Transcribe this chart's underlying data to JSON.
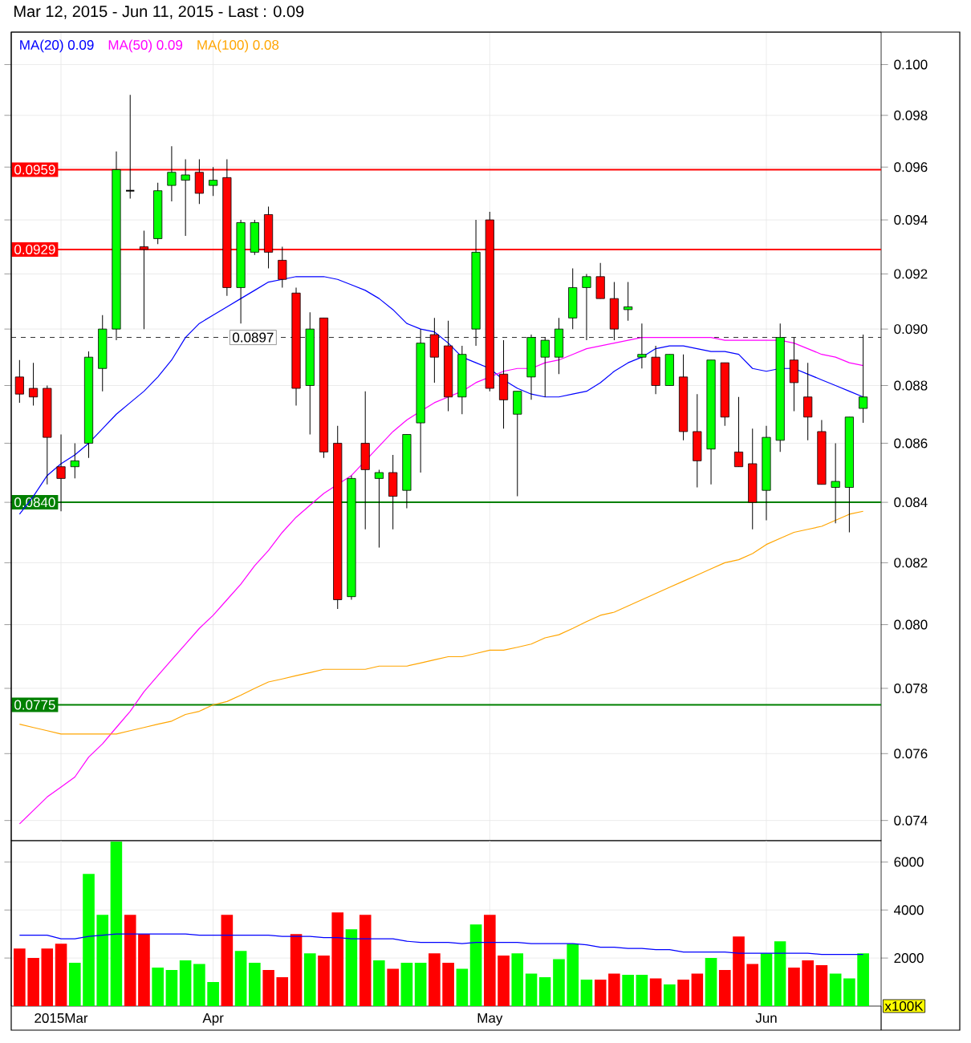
{
  "chart_data": [
    {
      "type": "candlestick",
      "title": "Mar 12, 2015 - Jun 11, 2015 - Last : 0.09",
      "categories": [
        null,
        null,
        null,
        null,
        null,
        null,
        null,
        null,
        null,
        null,
        null,
        null,
        null,
        null,
        null,
        null,
        null,
        null,
        null,
        null,
        null,
        null,
        null,
        null,
        null,
        null,
        null,
        null,
        null,
        null,
        null,
        null,
        null,
        null,
        null,
        null,
        null,
        null,
        null,
        null,
        null,
        null,
        null,
        null,
        null,
        null,
        null,
        null,
        null,
        null,
        null,
        null,
        null,
        null,
        null,
        null,
        null,
        null,
        null,
        null,
        null,
        null
      ],
      "ohlc": [
        [
          0.0883,
          0.0889,
          0.0874,
          0.0877
        ],
        [
          0.0879,
          0.0888,
          0.0873,
          0.0876
        ],
        [
          0.0879,
          0.088,
          0.0846,
          0.0862
        ],
        [
          0.0852,
          0.0863,
          0.0837,
          0.0848
        ],
        [
          0.0852,
          0.086,
          0.0848,
          0.0854
        ],
        [
          0.086,
          0.0892,
          0.0855,
          0.089
        ],
        [
          0.0886,
          0.0905,
          0.0878,
          0.09
        ],
        [
          0.09,
          0.0966,
          0.0896,
          0.0959
        ],
        [
          0.0951,
          0.0988,
          0.0948,
          0.0951
        ],
        [
          0.093,
          0.0936,
          0.09,
          0.0929
        ],
        [
          0.0933,
          0.0954,
          0.0931,
          0.0951
        ],
        [
          0.0953,
          0.0968,
          0.0947,
          0.0958
        ],
        [
          0.0955,
          0.0963,
          0.0934,
          0.0957
        ],
        [
          0.0958,
          0.0963,
          0.0946,
          0.095
        ],
        [
          0.0953,
          0.096,
          0.0949,
          0.0955
        ],
        [
          0.0956,
          0.0963,
          0.0912,
          0.0915
        ],
        [
          0.0915,
          0.094,
          0.0902,
          0.0939
        ],
        [
          0.0928,
          0.094,
          0.0927,
          0.0939
        ],
        [
          0.0942,
          0.0945,
          0.0922,
          0.0928
        ],
        [
          0.0925,
          0.093,
          0.0915,
          0.0918
        ],
        [
          0.0913,
          0.0915,
          0.0873,
          0.0879
        ],
        [
          0.088,
          0.0906,
          0.0863,
          0.09
        ],
        [
          0.0904,
          0.0904,
          0.0855,
          0.0857
        ],
        [
          0.086,
          0.0866,
          0.0805,
          0.0808
        ],
        [
          0.0809,
          0.0849,
          0.0808,
          0.0848
        ],
        [
          0.086,
          0.0878,
          0.0831,
          0.0851
        ],
        [
          0.0848,
          0.0851,
          0.0825,
          0.085
        ],
        [
          0.085,
          0.0856,
          0.0831,
          0.0842
        ],
        [
          0.0844,
          0.0863,
          0.0838,
          0.0863
        ],
        [
          0.0867,
          0.09,
          0.085,
          0.0895
        ],
        [
          0.0898,
          0.0904,
          0.0881,
          0.089
        ],
        [
          0.0894,
          0.0903,
          0.0871,
          0.0876
        ],
        [
          0.0876,
          0.0894,
          0.087,
          0.0891
        ],
        [
          0.09,
          0.094,
          0.0894,
          0.0928
        ],
        [
          0.094,
          0.0943,
          0.0878,
          0.0879
        ],
        [
          0.0884,
          0.0896,
          0.0865,
          0.0875
        ],
        [
          0.087,
          0.0878,
          0.0842,
          0.0878
        ],
        [
          0.0883,
          0.0898,
          0.0875,
          0.0897
        ],
        [
          0.089,
          0.0897,
          0.0876,
          0.0896
        ],
        [
          0.089,
          0.0904,
          0.0884,
          0.09
        ],
        [
          0.0904,
          0.0922,
          0.09,
          0.0915
        ],
        [
          0.0915,
          0.092,
          0.0896,
          0.0919
        ],
        [
          0.0919,
          0.0924,
          0.0911,
          0.0911
        ],
        [
          0.0911,
          0.0917,
          0.0896,
          0.09
        ],
        [
          0.0907,
          0.0917,
          0.0903,
          0.0908
        ],
        [
          0.089,
          0.0902,
          0.0886,
          0.0891
        ],
        [
          0.089,
          0.0894,
          0.0877,
          0.088
        ],
        [
          0.088,
          0.0891,
          0.088,
          0.0891
        ],
        [
          0.0883,
          0.0891,
          0.0861,
          0.0864
        ],
        [
          0.0864,
          0.0877,
          0.0845,
          0.0854
        ],
        [
          0.0858,
          0.0889,
          0.0846,
          0.0889
        ],
        [
          0.0888,
          0.0888,
          0.0866,
          0.0869
        ],
        [
          0.0857,
          0.0876,
          0.0852,
          0.0852
        ],
        [
          0.0853,
          0.0865,
          0.0831,
          0.084
        ],
        [
          0.0844,
          0.0866,
          0.0834,
          0.0862
        ],
        [
          0.0861,
          0.0902,
          0.0857,
          0.0897
        ],
        [
          0.0889,
          0.0897,
          0.0871,
          0.0881
        ],
        [
          0.0876,
          0.0888,
          0.0861,
          0.0869
        ],
        [
          0.0864,
          0.0868,
          0.0846,
          0.0846
        ],
        [
          0.0845,
          0.086,
          0.0833,
          0.0847
        ],
        [
          0.0845,
          0.0869,
          0.083,
          0.0869
        ],
        [
          0.0872,
          0.0898,
          0.0867,
          0.0876
        ]
      ],
      "colors": [
        "#ff0000",
        "#ff0000",
        "#ff0000",
        "#ff0000",
        "#00ff00",
        "#00ff00",
        "#00ff00",
        "#00ff00",
        "#000000",
        "#ff0000",
        "#00ff00",
        "#00ff00",
        "#00ff00",
        "#ff0000",
        "#00ff00",
        "#ff0000",
        "#00ff00",
        "#00ff00",
        "#ff0000",
        "#ff0000",
        "#ff0000",
        "#00ff00",
        "#ff0000",
        "#ff0000",
        "#00ff00",
        "#ff0000",
        "#00ff00",
        "#ff0000",
        "#00ff00",
        "#00ff00",
        "#ff0000",
        "#ff0000",
        "#00ff00",
        "#00ff00",
        "#ff0000",
        "#ff0000",
        "#00ff00",
        "#00ff00",
        "#00ff00",
        "#00ff00",
        "#00ff00",
        "#00ff00",
        "#ff0000",
        "#ff0000",
        "#00ff00",
        "#00ff00",
        "#ff0000",
        "#00ff00",
        "#ff0000",
        "#ff0000",
        "#00ff00",
        "#ff0000",
        "#ff0000",
        "#ff0000",
        "#00ff00",
        "#00ff00",
        "#ff0000",
        "#ff0000",
        "#ff0000",
        "#00ff00",
        "#00ff00",
        "#00ff00"
      ],
      "series": [
        {
          "name": "MA(20) 0.09",
          "type": "line",
          "color": "#0000ff",
          "values": [
            0.0836,
            0.0842,
            0.0849,
            0.0853,
            0.0856,
            0.086,
            0.0865,
            0.087,
            0.0874,
            0.0878,
            0.0883,
            0.0889,
            0.0897,
            0.0902,
            0.0905,
            0.0908,
            0.0911,
            0.0914,
            0.0917,
            0.0918,
            0.0919,
            0.0919,
            0.0919,
            0.0918,
            0.0916,
            0.0914,
            0.0911,
            0.0907,
            0.0902,
            0.09,
            0.0899,
            0.0895,
            0.089,
            0.0888,
            0.0886,
            0.0882,
            0.0879,
            0.0877,
            0.0876,
            0.0876,
            0.0877,
            0.0878,
            0.0881,
            0.0885,
            0.0888,
            0.089,
            0.0893,
            0.0894,
            0.0894,
            0.0893,
            0.0892,
            0.0892,
            0.0891,
            0.0886,
            0.0885,
            0.0886,
            0.0886,
            0.0884,
            0.0882,
            0.088,
            0.0878,
            0.0876
          ]
        },
        {
          "name": "MA(50) 0.09",
          "type": "line",
          "color": "#ff00ff",
          "values": [
            0.0739,
            0.0743,
            0.0747,
            0.075,
            0.0753,
            0.0759,
            0.0763,
            0.0768,
            0.0773,
            0.0779,
            0.0784,
            0.0789,
            0.0794,
            0.0799,
            0.0803,
            0.0808,
            0.0813,
            0.0819,
            0.0824,
            0.083,
            0.0835,
            0.0839,
            0.0843,
            0.0846,
            0.0849,
            0.0854,
            0.0859,
            0.0864,
            0.0868,
            0.0871,
            0.0874,
            0.0876,
            0.0878,
            0.0881,
            0.0883,
            0.0885,
            0.0886,
            0.0886,
            0.0888,
            0.0889,
            0.0891,
            0.0893,
            0.0894,
            0.0895,
            0.0896,
            0.0897,
            0.0897,
            0.0897,
            0.0897,
            0.0897,
            0.0897,
            0.0896,
            0.0896,
            0.0896,
            0.0896,
            0.0896,
            0.0895,
            0.0893,
            0.0891,
            0.089,
            0.0888,
            0.0887
          ]
        },
        {
          "name": "MA(100) 0.08",
          "type": "line",
          "color": "#ffa500",
          "values": [
            0.0769,
            0.0768,
            0.0767,
            0.0766,
            0.0766,
            0.0766,
            0.0766,
            0.0766,
            0.0767,
            0.0768,
            0.0769,
            0.077,
            0.0772,
            0.0773,
            0.0775,
            0.0776,
            0.0778,
            0.078,
            0.0782,
            0.0783,
            0.0784,
            0.0785,
            0.0786,
            0.0786,
            0.0786,
            0.0786,
            0.0787,
            0.0787,
            0.0787,
            0.0788,
            0.0789,
            0.079,
            0.079,
            0.0791,
            0.0792,
            0.0792,
            0.0793,
            0.0794,
            0.0796,
            0.0797,
            0.0799,
            0.0801,
            0.0803,
            0.0804,
            0.0806,
            0.0808,
            0.081,
            0.0812,
            0.0814,
            0.0816,
            0.0818,
            0.082,
            0.0821,
            0.0823,
            0.0826,
            0.0828,
            0.083,
            0.0831,
            0.0832,
            0.0834,
            0.0836,
            0.0837
          ]
        }
      ],
      "ylim": [
        0.0734,
        0.1013
      ],
      "yticks": [
        0.074,
        0.076,
        0.078,
        {
          "value": 0.08,
          "label": "0.080"
        },
        0.082,
        0.084,
        0.086,
        0.088,
        {
          "value": 0.09,
          "label": "0.090"
        },
        0.092,
        0.094,
        0.096,
        0.098,
        {
          "value": 0.1,
          "label": "0.100"
        }
      ],
      "log": "y",
      "grid": true,
      "legend": "top left",
      "tick_labels": "y",
      "ref_lines": [
        {
          "axis": "y",
          "value": 0.0959,
          "label": "0.0959",
          "color": "#ff0000"
        },
        {
          "axis": "y",
          "value": 0.0929,
          "label": "0.0929",
          "color": "#ff0000"
        },
        {
          "axis": "y",
          "value": 0.0897,
          "label": "0.0897",
          "color": "#333333",
          "line_style": "dashed"
        },
        {
          "axis": "y",
          "value": 0.084,
          "label": "0.0840",
          "color": "#008000"
        },
        {
          "axis": "y",
          "value": 0.0775,
          "label": "0.0775",
          "color": "#008000"
        }
      ]
    },
    {
      "type": "bar",
      "categories": [
        null,
        null,
        null,
        "2015Mar",
        null,
        null,
        null,
        null,
        null,
        null,
        null,
        null,
        null,
        null,
        "Apr",
        null,
        null,
        null,
        null,
        null,
        null,
        null,
        null,
        null,
        null,
        null,
        null,
        null,
        null,
        null,
        null,
        null,
        null,
        null,
        "May",
        null,
        null,
        null,
        null,
        null,
        null,
        null,
        null,
        null,
        null,
        null,
        null,
        null,
        null,
        null,
        null,
        null,
        null,
        null,
        "Jun",
        null,
        null,
        null,
        null,
        null,
        null,
        null
      ],
      "series": [
        {
          "values": [
            2400,
            2000,
            2400,
            2600,
            1800,
            5500,
            3800,
            6850,
            3800,
            3000,
            1600,
            1500,
            1900,
            1750,
            1000,
            3800,
            2300,
            1800,
            1500,
            1200,
            3000,
            2200,
            2100,
            3900,
            3200,
            3800,
            1900,
            1550,
            1800,
            1800,
            2200,
            1800,
            1550,
            3400,
            3800,
            2100,
            2200,
            1350,
            1200,
            1950,
            2600,
            1100,
            1100,
            1350,
            1300,
            1300,
            1150,
            900,
            1100,
            1350,
            2000,
            1500,
            2900,
            1750,
            2200,
            2700,
            1600,
            1900,
            1700,
            1350,
            1150,
            2200
          ],
          "colors": [
            "#ff0000",
            "#ff0000",
            "#ff0000",
            "#ff0000",
            "#00ff00",
            "#00ff00",
            "#00ff00",
            "#00ff00",
            "#ff0000",
            "#ff0000",
            "#00ff00",
            "#00ff00",
            "#00ff00",
            "#00ff00",
            "#00ff00",
            "#ff0000",
            "#00ff00",
            "#00ff00",
            "#ff0000",
            "#ff0000",
            "#ff0000",
            "#00ff00",
            "#ff0000",
            "#ff0000",
            "#00ff00",
            "#ff0000",
            "#00ff00",
            "#ff0000",
            "#00ff00",
            "#00ff00",
            "#ff0000",
            "#ff0000",
            "#00ff00",
            "#00ff00",
            "#ff0000",
            "#ff0000",
            "#00ff00",
            "#00ff00",
            "#00ff00",
            "#00ff00",
            "#00ff00",
            "#00ff00",
            "#ff0000",
            "#ff0000",
            "#00ff00",
            "#00ff00",
            "#ff0000",
            "#00ff00",
            "#ff0000",
            "#ff0000",
            "#00ff00",
            "#ff0000",
            "#ff0000",
            "#ff0000",
            "#00ff00",
            "#00ff00",
            "#ff0000",
            "#ff0000",
            "#ff0000",
            "#00ff00",
            "#00ff00",
            "#00ff00"
          ]
        },
        {
          "type": "line",
          "color": "#0000ff",
          "values": [
            2950,
            2950,
            2950,
            2800,
            2800,
            2900,
            2950,
            3000,
            3000,
            3000,
            3000,
            3000,
            3000,
            2950,
            2950,
            2950,
            2950,
            2950,
            2950,
            2900,
            2900,
            2900,
            2850,
            2850,
            2800,
            2800,
            2800,
            2800,
            2700,
            2650,
            2650,
            2650,
            2600,
            2650,
            2650,
            2650,
            2650,
            2600,
            2600,
            2600,
            2600,
            2550,
            2450,
            2450,
            2400,
            2400,
            2350,
            2350,
            2250,
            2250,
            2250,
            2250,
            2200,
            2200,
            2200,
            2200,
            2200,
            2200,
            2150,
            2150,
            2150,
            2150
          ]
        }
      ],
      "ylim": [
        0,
        6900
      ],
      "yticks": [
        2000,
        4000,
        6000
      ],
      "ylabel": "x100K",
      "grid": true
    }
  ]
}
